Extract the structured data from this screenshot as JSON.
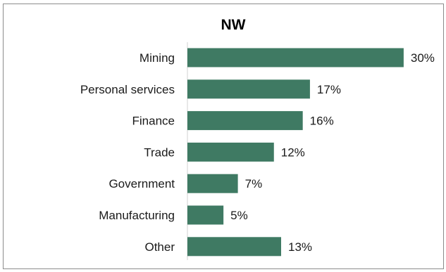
{
  "chart_data": {
    "type": "bar",
    "orientation": "horizontal",
    "title": "NW",
    "categories": [
      "Mining",
      "Personal services",
      "Finance",
      "Trade",
      "Government",
      "Manufacturing",
      "Other"
    ],
    "values": [
      30,
      17,
      16,
      12,
      7,
      5,
      13
    ],
    "value_labels": [
      "30%",
      "17%",
      "16%",
      "12%",
      "7%",
      "5%",
      "13%"
    ],
    "unit": "%",
    "bar_color": "#3f7a63",
    "grid": false,
    "legend": "none"
  }
}
